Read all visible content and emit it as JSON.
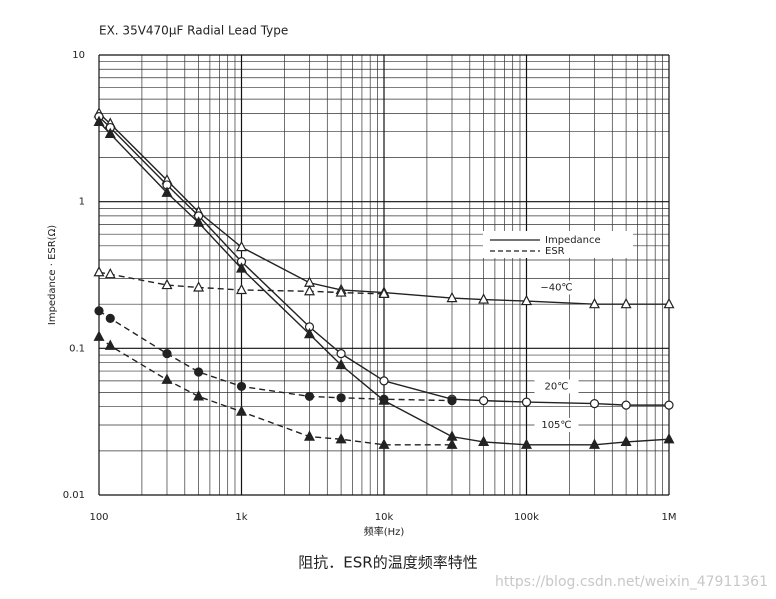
{
  "chart_data": {
    "type": "line",
    "title": "EX. 35V470μF Radial Lead Type",
    "x_label": "频率(Hz)",
    "y_label": "Impedance · ESR(Ω)",
    "caption": "阻抗．ESR的温度频率特性",
    "watermark": "https://blog.csdn.net/weixin_47911361",
    "log_x": true,
    "log_y": true,
    "grid": true,
    "x": [
      100,
      120,
      300,
      500,
      1000,
      3000,
      5000,
      10000,
      30000,
      50000,
      100000,
      300000,
      500000,
      1000000
    ],
    "xlim": [
      100,
      1000000
    ],
    "xticks": [
      100,
      {
        "value": 1000,
        "label": "1k"
      },
      {
        "value": 10000,
        "label": "10k"
      },
      {
        "value": 100000,
        "label": "100k"
      },
      {
        "value": 1000000,
        "label": "1M"
      }
    ],
    "ylim": [
      0.01,
      10
    ],
    "yticks": [
      0.01,
      0.1,
      1,
      10
    ],
    "legend": [
      {
        "label": "Impedance",
        "style": "solid"
      },
      {
        "label": "ESR",
        "style": "dashed"
      }
    ],
    "annotations": [
      {
        "text": "−40℃",
        "x": 100000,
        "y": 0.26
      },
      {
        "text": "20℃",
        "x": 100000,
        "y": 0.055
      },
      {
        "text": "105℃",
        "x": 100000,
        "y": 0.03
      }
    ],
    "series": [
      {
        "color": "#222222",
        "style": "solid",
        "marker": "open-triangle",
        "values": [
          4.0,
          3.4,
          1.4,
          0.85,
          0.49,
          0.28,
          0.25,
          0.24,
          0.22,
          0.215,
          0.21,
          0.2,
          0.2,
          0.2
        ]
      },
      {
        "color": "#222222",
        "style": "solid",
        "marker": "open-circle",
        "values": [
          3.8,
          3.2,
          1.3,
          0.8,
          0.39,
          0.14,
          0.092,
          0.06,
          0.045,
          0.044,
          0.043,
          0.042,
          0.041,
          0.041
        ]
      },
      {
        "color": "#222222",
        "style": "solid",
        "marker": "filled-triangle",
        "values": [
          3.5,
          2.9,
          1.15,
          0.72,
          0.35,
          0.125,
          0.077,
          0.044,
          0.025,
          0.023,
          0.022,
          0.022,
          0.023,
          0.024
        ]
      },
      {
        "color": "#222222",
        "style": "dashed",
        "marker": "open-triangle",
        "values": [
          0.33,
          0.32,
          0.27,
          0.26,
          0.25,
          0.245,
          0.24,
          0.235,
          null,
          null,
          null,
          null,
          null,
          null
        ]
      },
      {
        "color": "#222222",
        "style": "dashed",
        "marker": "filled-circle",
        "values": [
          0.18,
          0.16,
          0.092,
          0.069,
          0.055,
          0.047,
          0.046,
          0.045,
          0.044,
          null,
          null,
          null,
          null,
          null
        ]
      },
      {
        "color": "#222222",
        "style": "dashed",
        "marker": "filled-triangle",
        "values": [
          0.12,
          0.104,
          0.061,
          0.047,
          0.037,
          0.025,
          0.024,
          0.022,
          0.022,
          null,
          null,
          null,
          null,
          null
        ]
      }
    ]
  }
}
